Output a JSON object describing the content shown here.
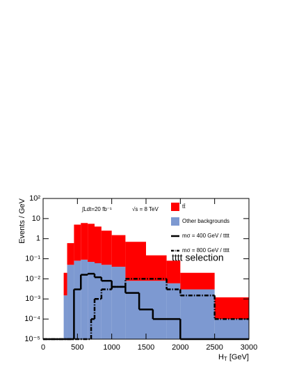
{
  "chart_data": {
    "type": "histogram",
    "ylabel": "Events / GeV",
    "xlabel": [
      "H",
      "T",
      " [GeV]"
    ],
    "annotations": [
      "∫Ldt=20 fb⁻¹",
      "√s = 8 TeV",
      "tttt selection"
    ],
    "bins": [
      300,
      350,
      450,
      550,
      650,
      750,
      850,
      1000,
      1200,
      1500,
      1800,
      2000,
      2500,
      3000
    ],
    "stacked": true,
    "series": [
      {
        "name": "Other backgrounds",
        "color": "#7d99d1",
        "values": [
          0.0015,
          0.05,
          0.08,
          0.09,
          0.07,
          0.06,
          0.05,
          0.04,
          0.008,
          0.008,
          0.006,
          0.003,
          0.0001
        ]
      },
      {
        "name": "tt̄",
        "color": "#ff0000",
        "values": [
          0.0185,
          0.55,
          4.92,
          5.91,
          5.43,
          3.94,
          2.45,
          1.46,
          0.69,
          0.14,
          0.074,
          0.017,
          0.0011
        ]
      }
    ],
    "overlays": [
      {
        "name": "mσ = 400 GeV / tttt",
        "color": "#000000",
        "style": "solid",
        "bins": [
          0,
          450,
          550,
          650,
          750,
          850,
          1000,
          1200,
          1400,
          1600,
          2000,
          3000
        ],
        "values": [
          1e-05,
          0.003,
          0.016,
          0.018,
          0.012,
          0.008,
          0.004,
          0.002,
          0.0003,
          0.0001,
          1e-05
        ]
      },
      {
        "name": "mσ = 800 GeV / tttt",
        "color": "#000000",
        "style": "dashdot",
        "bins": [
          0,
          700,
          750,
          850,
          1000,
          1200,
          1800,
          2000,
          2500,
          3000
        ],
        "values": [
          1e-05,
          0.0001,
          0.001,
          0.003,
          0.004,
          0.01,
          0.003,
          0.0015,
          0.0001
        ]
      }
    ],
    "xlim": [
      0,
      3000
    ],
    "ylim": [
      1e-05,
      100
    ],
    "log_y": true,
    "xticks": [
      0,
      500,
      1000,
      1500,
      2000,
      2500,
      3000
    ],
    "yticks": [
      {
        "value": 100,
        "label": "10²"
      },
      10,
      1,
      {
        "value": 0.1,
        "label": "10⁻¹"
      },
      {
        "value": 0.01,
        "label": "10⁻²"
      },
      {
        "value": 0.001,
        "label": "10⁻³"
      },
      {
        "value": 0.0001,
        "label": "10⁻⁴"
      },
      {
        "value": 1e-05,
        "label": "10⁻⁵"
      }
    ],
    "legend": "upper right"
  }
}
